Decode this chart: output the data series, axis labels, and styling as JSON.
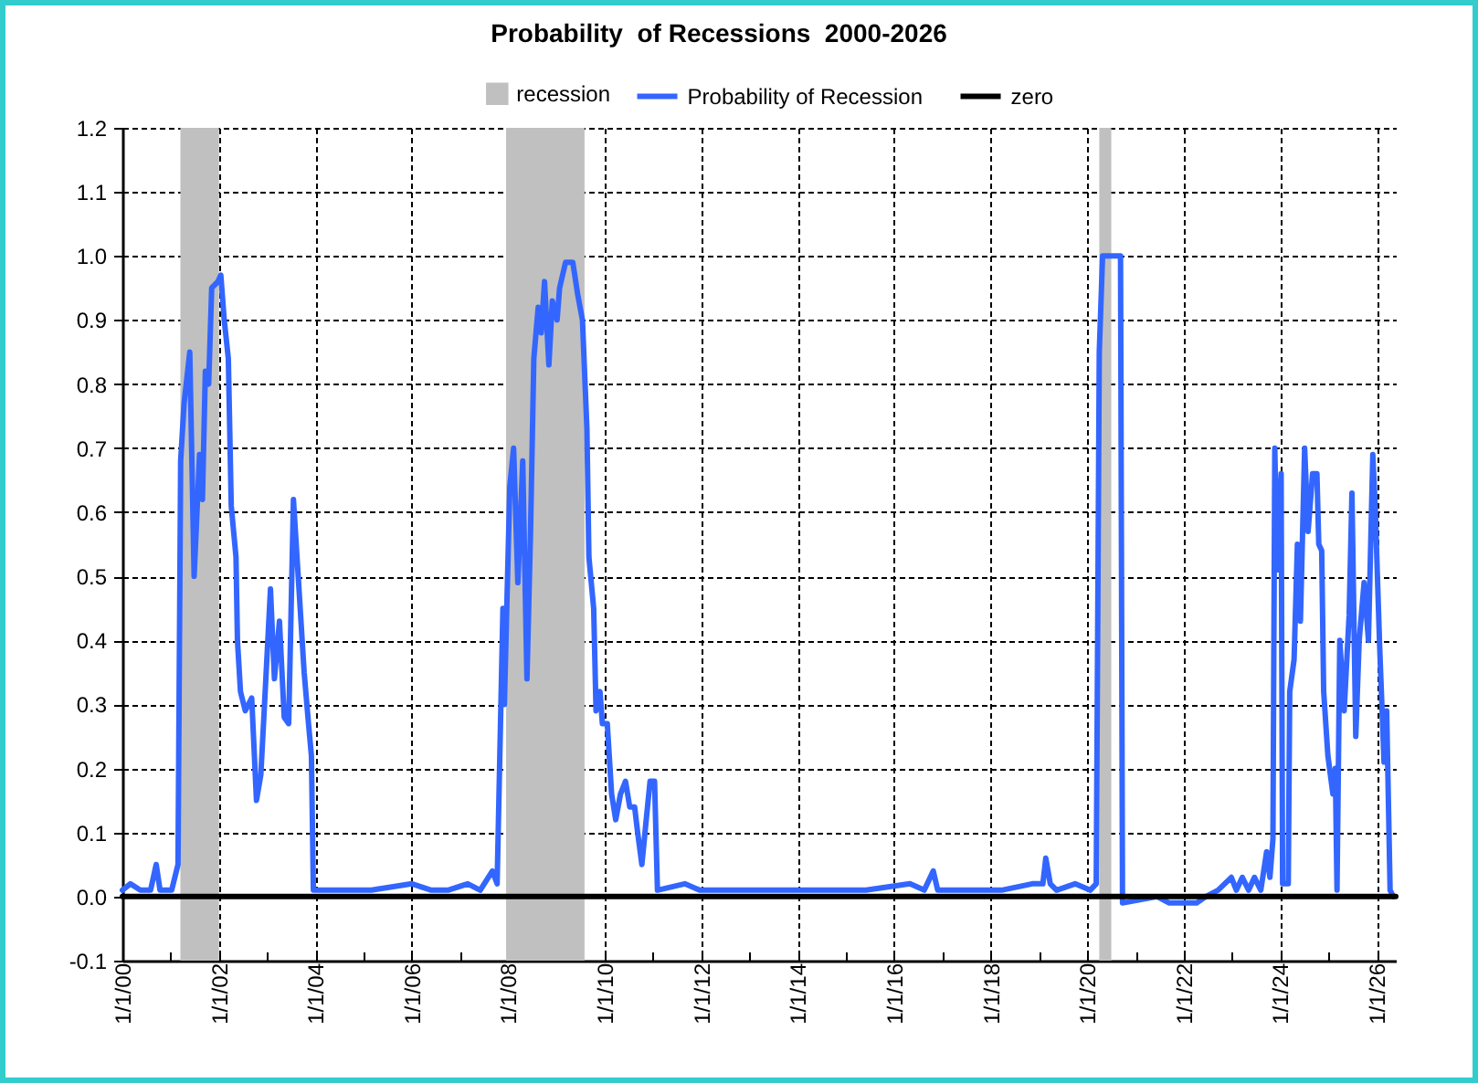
{
  "chart_data": {
    "type": "line",
    "title": "Probability  of Recessions  2000-2026",
    "xlim": [
      "2000-01-01",
      "2026-05-25"
    ],
    "ylim": [
      -0.1,
      1.2
    ],
    "xticks": [
      {
        "value": "2000-01-01",
        "label": "1/1/00"
      },
      {
        "value": "2001-01-01",
        "label": null
      },
      {
        "value": "2002-01-01",
        "label": "1/1/02"
      },
      {
        "value": "2003-01-01",
        "label": null
      },
      {
        "value": "2004-01-01",
        "label": "1/1/04"
      },
      {
        "value": "2005-01-01",
        "label": null
      },
      {
        "value": "2006-01-01",
        "label": "1/1/06"
      },
      {
        "value": "2007-01-01",
        "label": null
      },
      {
        "value": "2008-01-01",
        "label": "1/1/08"
      },
      {
        "value": "2009-01-01",
        "label": null
      },
      {
        "value": "2010-01-01",
        "label": "1/1/10"
      },
      {
        "value": "2011-01-01",
        "label": null
      },
      {
        "value": "2012-01-01",
        "label": "1/1/12"
      },
      {
        "value": "2013-01-01",
        "label": null
      },
      {
        "value": "2014-01-01",
        "label": "1/1/14"
      },
      {
        "value": "2015-01-01",
        "label": null
      },
      {
        "value": "2016-01-01",
        "label": "1/1/16"
      },
      {
        "value": "2017-01-01",
        "label": null
      },
      {
        "value": "2018-01-01",
        "label": "1/1/18"
      },
      {
        "value": "2019-01-01",
        "label": null
      },
      {
        "value": "2020-01-01",
        "label": "1/1/20"
      },
      {
        "value": "2021-01-01",
        "label": null
      },
      {
        "value": "2022-01-01",
        "label": "1/1/22"
      },
      {
        "value": "2023-01-01",
        "label": null
      },
      {
        "value": "2024-01-01",
        "label": "1/1/24"
      },
      {
        "value": "2025-01-01",
        "label": null
      },
      {
        "value": "2026-01-01",
        "label": "1/1/26"
      }
    ],
    "yticks": [
      -0.1,
      {
        "value": 0,
        "label": "0.0"
      },
      0.1,
      0.2,
      0.3,
      0.4,
      0.5,
      0.6,
      0.7,
      0.8,
      0.9,
      {
        "value": 1,
        "label": "1.0"
      },
      1.1,
      1.2
    ],
    "grid": true,
    "legend": "top",
    "bands": [
      {
        "axis": "x",
        "from": "2001-03-15",
        "to": "2002-01-01",
        "label": "recession",
        "color": "#c0c0c0"
      },
      {
        "axis": "x",
        "from": "2007-12-15",
        "to": "2009-07-31",
        "color": "#c0c0c0"
      },
      {
        "axis": "x",
        "from": "2020-04-01",
        "to": "2020-07-01",
        "color": "#c0c0c0"
      }
    ],
    "series": [
      {
        "name": "Probability of Recession",
        "color": "#3366ff",
        "x": [
          "2000-01-01",
          "2000-03-01",
          "2000-05-15",
          "2000-08-01",
          "2000-09-13",
          "2000-10-12",
          "2001-01-08",
          "2001-02-25",
          "2001-03-17",
          "2001-04-12",
          "2001-05-25",
          "2001-06-27",
          "2001-08-07",
          "2001-08-29",
          "2001-09-20",
          "2001-10-15",
          "2001-11-07",
          "2001-12-24",
          "2002-01-15",
          "2002-02-10",
          "2002-03-13",
          "2002-04-04",
          "2002-05-10",
          "2002-05-21",
          "2002-06-13",
          "2002-07-19",
          "2002-09-06",
          "2002-10-12",
          "2002-11-14",
          "2002-12-17",
          "2003-01-26",
          "2003-02-25",
          "2003-04-04",
          "2003-05-10",
          "2003-06-13",
          "2003-07-19",
          "2003-08-21",
          "2003-10-08",
          "2003-11-10",
          "2003-12-02",
          "2003-12-17",
          "2004-06-01",
          "2005-03-01",
          "2006-01-01",
          "2006-05-28",
          "2006-10-01",
          "2007-02-28",
          "2007-06-02",
          "2007-09-02",
          "2007-10-08",
          "2007-11-21",
          "2007-12-02",
          "2008-01-12",
          "2008-02-10",
          "2008-03-13",
          "2008-04-19",
          "2008-05-21",
          "2008-06-17",
          "2008-07-12",
          "2008-08-14",
          "2008-09-06",
          "2008-10-01",
          "2008-11-03",
          "2008-11-29",
          "2009-01-04",
          "2009-01-23",
          "2009-03-09",
          "2009-05-03",
          "2009-06-09",
          "2009-07-15",
          "2009-08-18",
          "2009-09-02",
          "2009-10-08",
          "2009-10-26",
          "2009-11-25",
          "2009-12-13",
          "2010-01-19",
          "2010-02-21",
          "2010-03-24",
          "2010-04-29",
          "2010-06-06",
          "2010-07-08",
          "2010-08-14",
          "2010-09-06",
          "2010-10-08",
          "2010-11-10",
          "2010-12-09",
          "2011-01-12",
          "2011-02-03",
          "2011-08-29",
          "2011-12-20",
          "2012-09-01",
          "2013-06-01",
          "2014-06-01",
          "2015-06-01",
          "2016-04-29",
          "2016-08-15",
          "2016-10-22",
          "2016-11-25",
          "2017-09-20",
          "2018-03-24",
          "2018-11-10",
          "2019-01-30",
          "2019-02-21",
          "2019-03-27",
          "2019-05-14",
          "2019-10-01",
          "2020-01-23",
          "2020-03-09",
          "2020-04-01",
          "2020-04-26",
          "2020-09-09",
          "2020-09-24",
          "2021-06-13",
          "2021-09-13",
          "2022-04-08",
          "2022-06-17",
          "2022-09-17",
          "2022-12-27",
          "2023-02-03",
          "2023-03-20",
          "2023-05-07",
          "2023-06-20",
          "2023-08-07",
          "2023-09-20",
          "2023-10-15",
          "2023-11-07",
          "2023-11-21",
          "2023-12-09",
          "2024-01-08",
          "2024-01-19",
          "2024-03-02",
          "2024-03-13",
          "2024-04-15",
          "2024-05-10",
          "2024-06-02",
          "2024-07-04",
          "2024-07-30",
          "2024-09-02",
          "2024-10-05",
          "2024-10-19",
          "2024-11-10",
          "2024-11-25",
          "2024-12-27",
          "2025-02-03",
          "2025-02-21",
          "2025-03-06",
          "2025-03-27",
          "2025-04-29",
          "2025-06-06",
          "2025-06-27",
          "2025-07-26",
          "2025-08-21",
          "2025-09-27",
          "2025-10-30",
          "2025-12-02",
          "2025-12-20",
          "2026-01-23",
          "2026-02-25",
          "2026-03-17",
          "2026-04-12",
          "2026-05-07"
        ],
        "values": [
          0.01,
          0.02,
          0.01,
          0.01,
          0.05,
          0.01,
          0.01,
          0.05,
          0.68,
          0.77,
          0.85,
          0.5,
          0.69,
          0.62,
          0.82,
          0.8,
          0.95,
          0.96,
          0.97,
          0.9,
          0.84,
          0.61,
          0.53,
          0.4,
          0.32,
          0.29,
          0.31,
          0.15,
          0.19,
          0.32,
          0.48,
          0.34,
          0.43,
          0.28,
          0.27,
          0.62,
          0.51,
          0.35,
          0.27,
          0.22,
          0.01,
          0.01,
          0.01,
          0.02,
          0.01,
          0.01,
          0.02,
          0.01,
          0.04,
          0.02,
          0.45,
          0.3,
          0.64,
          0.7,
          0.49,
          0.68,
          0.34,
          0.57,
          0.84,
          0.92,
          0.88,
          0.96,
          0.83,
          0.93,
          0.9,
          0.95,
          0.99,
          0.99,
          0.94,
          0.9,
          0.73,
          0.53,
          0.45,
          0.29,
          0.32,
          0.27,
          0.27,
          0.16,
          0.12,
          0.16,
          0.18,
          0.14,
          0.14,
          0.1,
          0.05,
          0.12,
          0.18,
          0.18,
          0.01,
          0.02,
          0.01,
          0.01,
          0.01,
          0.01,
          0.01,
          0.02,
          0.01,
          0.04,
          0.01,
          0.01,
          0.01,
          0.02,
          0.02,
          0.06,
          0.02,
          0.01,
          0.02,
          0.01,
          0.02,
          0.85,
          1.0,
          1.0,
          -0.01,
          0.0,
          -0.01,
          -0.01,
          0.0,
          0.01,
          0.03,
          0.01,
          0.03,
          0.01,
          0.03,
          0.01,
          0.07,
          0.03,
          0.09,
          0.7,
          0.51,
          0.66,
          0.02,
          0.02,
          0.32,
          0.37,
          0.55,
          0.43,
          0.7,
          0.57,
          0.66,
          0.66,
          0.55,
          0.54,
          0.32,
          0.22,
          0.16,
          0.2,
          0.01,
          0.4,
          0.29,
          0.44,
          0.63,
          0.25,
          0.4,
          0.49,
          0.4,
          0.69,
          0.61,
          0.39,
          0.21,
          0.29,
          0.01,
          0.0
        ]
      },
      {
        "name": "zero",
        "color": "#000000",
        "x": [
          "2000-01-01",
          "2026-05-25"
        ],
        "values": [
          0,
          0
        ]
      }
    ]
  }
}
